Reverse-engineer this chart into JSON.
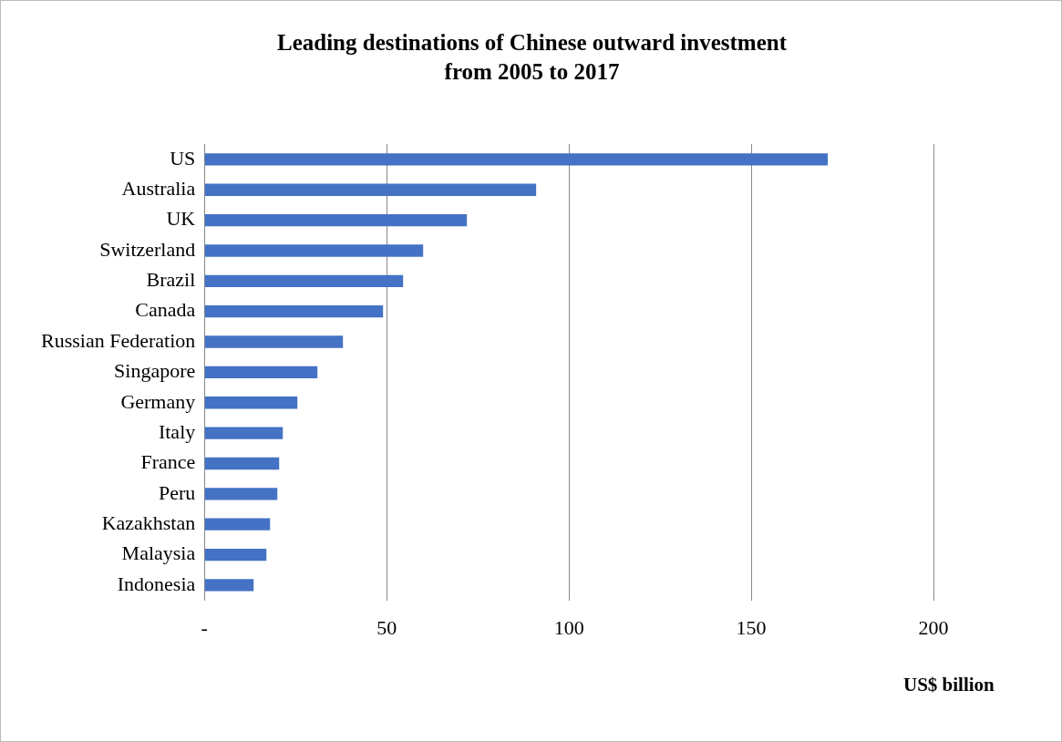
{
  "chart_data": {
    "type": "bar",
    "orientation": "horizontal",
    "title": "Leading destinations of Chinese outward investment\nfrom 2005 to 2017",
    "xlabel": "US$ billion",
    "categories": [
      "US",
      "Australia",
      "UK",
      "Switzerland",
      "Brazil",
      "Canada",
      "Russian Federation",
      "Singapore",
      "Germany",
      "Italy",
      "France",
      "Peru",
      "Kazakhstan",
      "Malaysia",
      "Indonesia"
    ],
    "values": [
      171,
      91,
      72,
      60,
      54.5,
      49,
      38,
      31,
      25.5,
      21.5,
      20.5,
      20,
      18,
      17,
      13.5
    ],
    "color": "#4472c4",
    "xlim": [
      0,
      200
    ],
    "xticks": [
      {
        "value": 0,
        "label": "-"
      },
      50,
      100,
      150,
      200
    ],
    "grid": "x",
    "legend": false
  }
}
